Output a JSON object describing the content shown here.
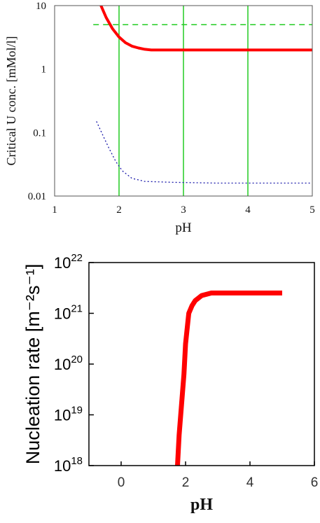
{
  "chart_data": [
    {
      "type": "line",
      "xlabel": "pH",
      "ylabel": "Critical U conc.  [mMol/l]",
      "xlim": [
        1,
        5
      ],
      "ylim": [
        0.01,
        10
      ],
      "yscale": "log",
      "xticks": [
        "1",
        "2",
        "3",
        "4",
        "5"
      ],
      "yticks": [
        "0.01",
        "0.1",
        "1",
        "10"
      ],
      "vertical_lines": [
        2,
        3,
        4
      ],
      "grid": false,
      "series": [
        {
          "style": "solid",
          "color": "#ff0000",
          "x": [
            1.72,
            1.8,
            1.9,
            2.0,
            2.1,
            2.2,
            2.3,
            2.4,
            2.5,
            3.0,
            3.5,
            4.0,
            4.5,
            5.0
          ],
          "y": [
            10.0,
            6.5,
            4.3,
            3.2,
            2.6,
            2.3,
            2.15,
            2.05,
            2.0,
            2.0,
            2.0,
            2.0,
            2.0,
            2.0
          ]
        },
        {
          "style": "dashed",
          "color": "#22cc22",
          "x": [
            1.6,
            5.0
          ],
          "y": [
            5.0,
            5.0
          ]
        },
        {
          "style": "dotted",
          "color": "#1a1aaa",
          "x": [
            1.65,
            1.75,
            1.85,
            1.95,
            2.05,
            2.2,
            2.4,
            2.8,
            3.5,
            4.5,
            5.0
          ],
          "y": [
            0.15,
            0.09,
            0.055,
            0.035,
            0.025,
            0.019,
            0.017,
            0.0165,
            0.016,
            0.016,
            0.016
          ]
        }
      ]
    },
    {
      "type": "line",
      "xlabel": "pH",
      "ylabel": "Nucleation rate [m⁻²s⁻¹]",
      "xlim": [
        -1,
        6
      ],
      "ylim": [
        18,
        22
      ],
      "yscale": "log",
      "xticks": [
        "0",
        "2",
        "4",
        "6"
      ],
      "yticks": [
        "10",
        "10",
        "10",
        "10",
        "10"
      ],
      "ytick_exponents": [
        "18",
        "19",
        "20",
        "21",
        "22"
      ],
      "grid": false,
      "series": [
        {
          "style": "solid",
          "color": "#ff0000",
          "x": [
            1.75,
            1.8,
            1.85,
            1.9,
            1.95,
            2.0,
            2.1,
            2.2,
            2.3,
            2.5,
            2.8,
            3.5,
            4.0,
            5.0
          ],
          "y": [
            18.0,
            18.6,
            19.0,
            19.4,
            19.8,
            20.4,
            21.0,
            21.15,
            21.25,
            21.35,
            21.4,
            21.4,
            21.4,
            21.4
          ]
        }
      ]
    }
  ]
}
